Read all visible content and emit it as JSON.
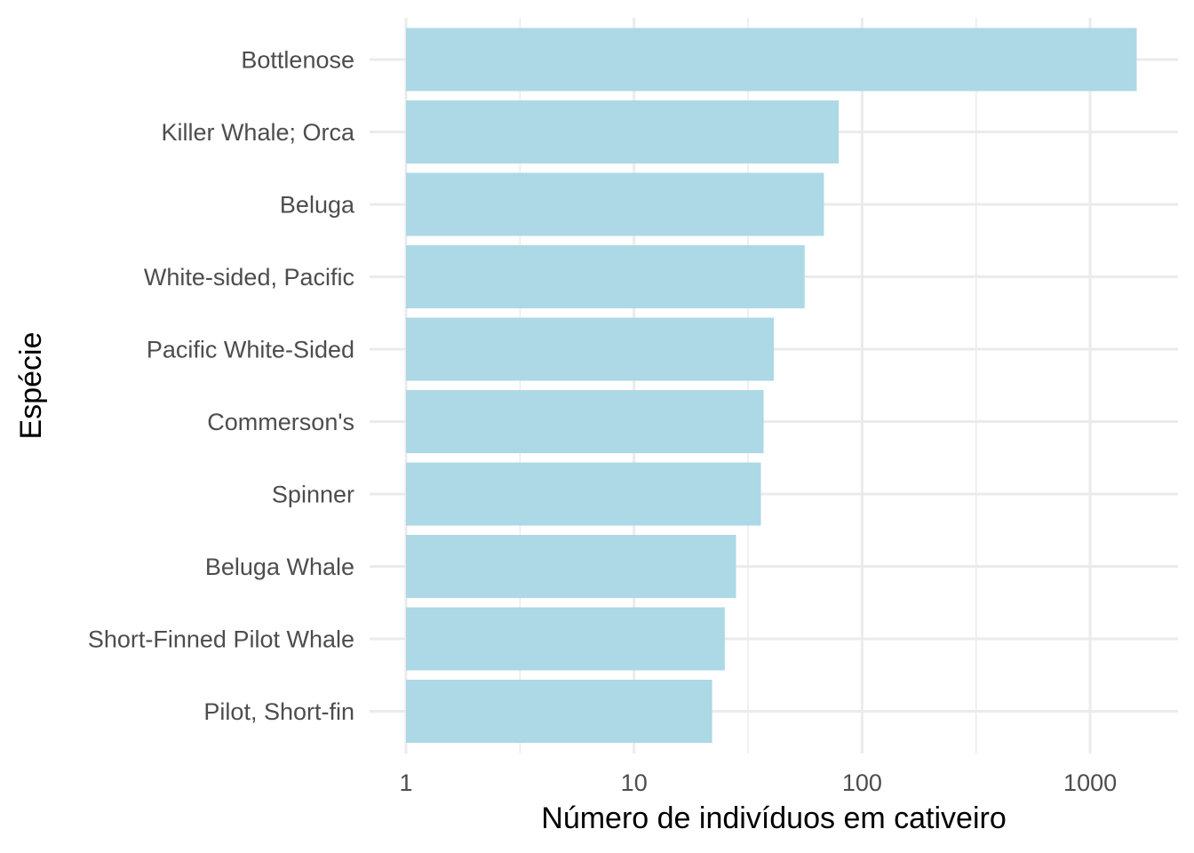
{
  "chart_data": {
    "type": "bar",
    "orientation": "horizontal",
    "title": "",
    "xlabel": "Número de indivíduos em cativeiro",
    "ylabel": "Espécie",
    "x_scale": "log10",
    "xlim": [
      1,
      2100
    ],
    "x_ticks": [
      1,
      10,
      100,
      1000
    ],
    "x_tick_labels": [
      "1",
      "10",
      "100",
      "1000"
    ],
    "grid": true,
    "legend": "none",
    "bar_color": "#add8e6",
    "categories": [
      "Bottlenose",
      "Killer Whale; Orca",
      "Beluga",
      "White-sided, Pacific",
      "Pacific White-Sided",
      "Commerson's",
      "Spinner",
      "Beluga Whale",
      "Short-Finned Pilot Whale",
      "Pilot, Short-fin"
    ],
    "values": [
      1600,
      79,
      68,
      56,
      41,
      37,
      36,
      28,
      25,
      22
    ]
  },
  "colors": {
    "bar": "#add8e6",
    "grid": "#ebebeb",
    "tick_text": "#4d4d4d",
    "title_text": "#000000"
  }
}
